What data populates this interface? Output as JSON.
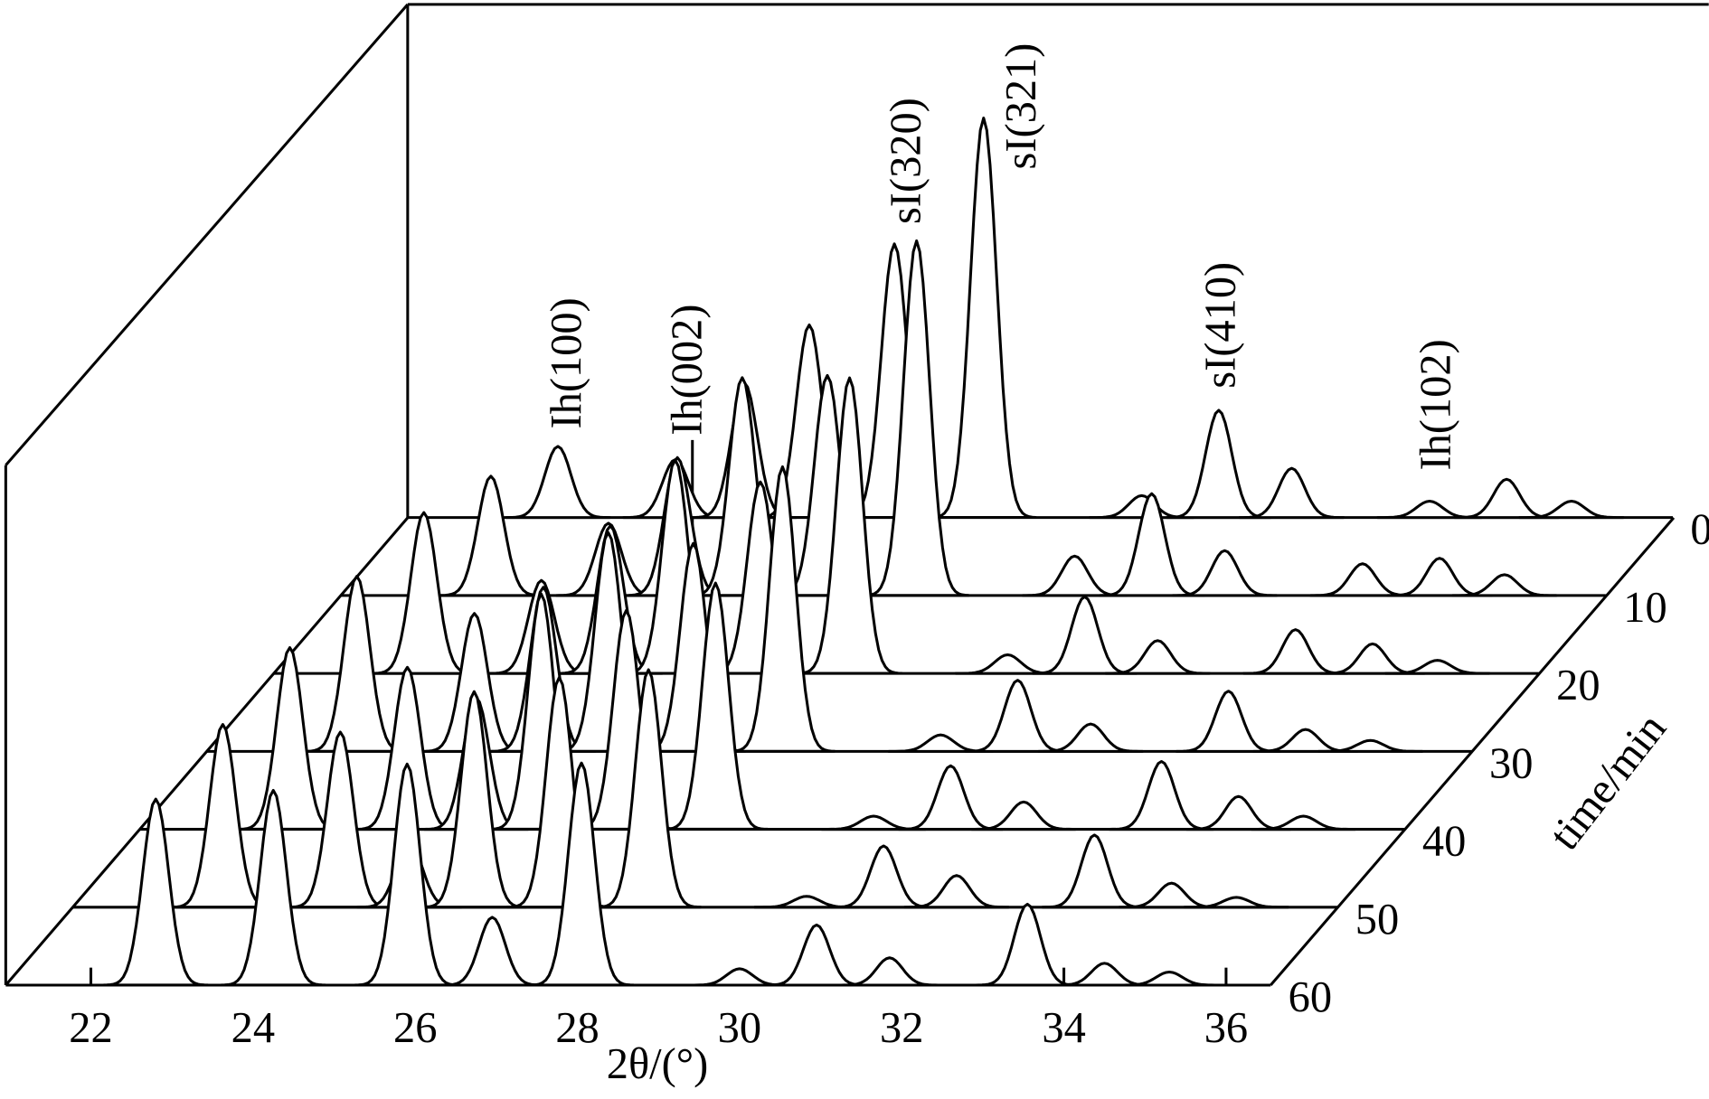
{
  "chart_data": {
    "type": "waterfall",
    "x_label": "2θ/(°)",
    "z_label": "time/min",
    "xlim": [
      20.95,
      36.55
    ],
    "xticks": [
      22,
      24,
      26,
      28,
      30,
      32,
      34,
      36
    ],
    "x": [
      22.8,
      24.25,
      25.1,
      25.9,
      26.95,
      28.05,
      30.0,
      30.95,
      31.85,
      33.55,
      34.5,
      35.3
    ],
    "series": [
      {
        "name": "0",
        "color": "#000000",
        "values": [
          65,
          53,
          123,
          176,
          250,
          365,
          20,
          98,
          45,
          15,
          35,
          15
        ]
      },
      {
        "name": "10",
        "color": "#000000",
        "values": [
          109,
          66,
          126,
          199,
          201,
          324,
          36,
          93,
          41,
          29,
          34,
          19
        ]
      },
      {
        "name": "20",
        "color": "#000000",
        "values": [
          147,
          85,
          135,
          195,
          175,
          270,
          17,
          70,
          30,
          40,
          27,
          12
        ]
      },
      {
        "name": "30",
        "color": "#000000",
        "values": [
          160,
          126,
          150,
          200,
          190,
          260,
          15,
          65,
          25,
          55,
          20,
          10
        ]
      },
      {
        "name": "40",
        "color": "#000000",
        "values": [
          166,
          148,
          120,
          215,
          200,
          225,
          12,
          58,
          25,
          62,
          30,
          12
        ]
      },
      {
        "name": "50",
        "color": "#000000",
        "values": [
          167,
          160,
          60,
          197,
          210,
          217,
          10,
          56,
          29,
          66,
          22,
          9
        ]
      },
      {
        "name": "60",
        "color": "#000000",
        "values": [
          170,
          178,
          0,
          202,
          62,
          203,
          15,
          55,
          25,
          74,
          20,
          12
        ]
      }
    ],
    "annotations": [
      {
        "text": "Ih(100)",
        "x": 22.89,
        "y": 81
      },
      {
        "text": "Ih(002)",
        "x": 24.38,
        "y": 75
      },
      {
        "text": "sI(320)",
        "x": 27.08,
        "y": 268
      },
      {
        "text": "sI(321)",
        "x": 28.5,
        "y": 318
      },
      {
        "text": "sI(410)",
        "x": 30.96,
        "y": 118
      },
      {
        "text": "Ih(102)",
        "x": 33.61,
        "y": 43
      }
    ]
  }
}
